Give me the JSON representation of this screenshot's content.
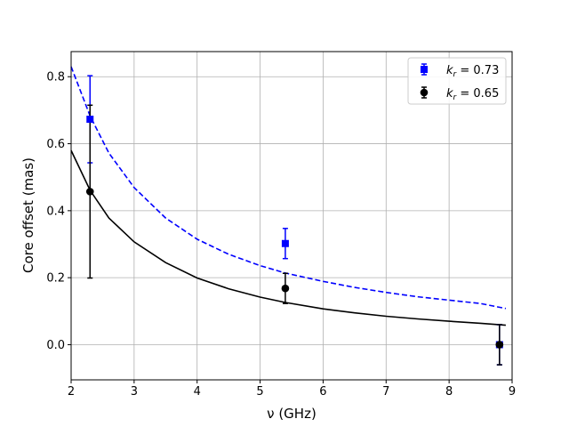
{
  "chart_data": {
    "type": "scatter",
    "xlabel": "ν (GHz)",
    "ylabel": "Core offset (mas)",
    "xlim": [
      2,
      9
    ],
    "ylim": [
      -0.105,
      0.875
    ],
    "xticks": [
      2,
      3,
      4,
      5,
      6,
      7,
      8,
      9
    ],
    "yticks": [
      0.0,
      0.2,
      0.4,
      0.6,
      0.8
    ],
    "xtick_labels": [
      "2",
      "3",
      "4",
      "5",
      "6",
      "7",
      "8",
      "9"
    ],
    "ytick_labels": [
      "0.0",
      "0.2",
      "0.4",
      "0.6",
      "0.8"
    ],
    "grid": true,
    "legend_position": "top-right",
    "series": [
      {
        "name": "k_r = 0.73",
        "label_base": "k",
        "label_sub": "r",
        "label_rest": " = 0.73",
        "color": "#0000ff",
        "marker": "square",
        "line_style": "dashed",
        "x": [
          2.3,
          5.4,
          8.8
        ],
        "y": [
          0.673,
          0.302,
          0.0
        ],
        "yerr": [
          0.13,
          0.045,
          0.06
        ],
        "fit": {
          "form": "a / nu^(1/k_r) - b",
          "k_r": 0.73,
          "x": [
            2,
            2.3,
            2.6,
            3,
            3.5,
            4,
            4.5,
            5,
            5.4,
            6,
            6.5,
            7,
            7.5,
            8,
            8.5,
            8.9
          ],
          "y": [
            0.83,
            0.683,
            0.572,
            0.469,
            0.378,
            0.315,
            0.27,
            0.236,
            0.214,
            0.189,
            0.171,
            0.156,
            0.143,
            0.133,
            0.123,
            0.108
          ]
        }
      },
      {
        "name": "k_r = 0.65",
        "label_base": "k",
        "label_sub": "r",
        "label_rest": " = 0.65",
        "color": "#000000",
        "marker": "circle",
        "line_style": "solid",
        "x": [
          2.3,
          5.4,
          8.8
        ],
        "y": [
          0.457,
          0.168,
          0.0
        ],
        "yerr": [
          0.258,
          0.045,
          0.06
        ],
        "fit": {
          "form": "a / nu^(1/k_r) - b",
          "k_r": 0.65,
          "x": [
            2,
            2.3,
            2.6,
            3,
            3.5,
            4,
            4.5,
            5,
            5.4,
            6,
            6.5,
            7,
            7.5,
            8,
            8.5,
            8.9
          ],
          "y": [
            0.58,
            0.461,
            0.378,
            0.307,
            0.245,
            0.199,
            0.167,
            0.142,
            0.126,
            0.107,
            0.095,
            0.085,
            0.077,
            0.07,
            0.064,
            0.058
          ]
        }
      }
    ]
  }
}
